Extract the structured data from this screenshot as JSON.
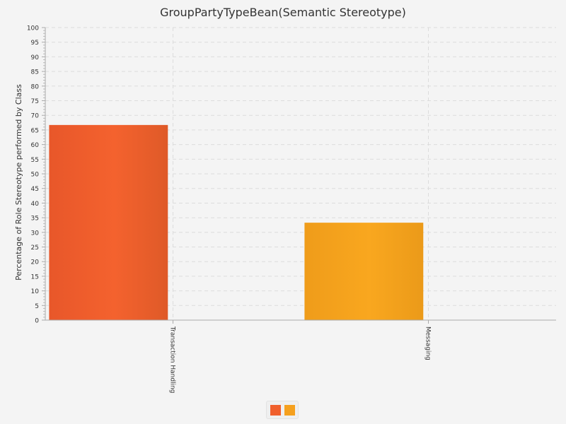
{
  "chart_data": {
    "type": "bar",
    "title": "GroupPartyTypeBean(Semantic Stereotype)",
    "xlabel": "",
    "ylabel": "Percentage of Role Stereotype performed by Class",
    "categories": [
      "Transaction Handling",
      "Messaging"
    ],
    "values": [
      66.7,
      33.3
    ],
    "colors": [
      "#f05f2c",
      "#f5a01e"
    ],
    "ylim": [
      0,
      100
    ],
    "ytick_step": 5,
    "grid": true,
    "legend": {
      "position": "bottom-center",
      "entries": [
        {
          "color": "#f05f2c"
        },
        {
          "color": "#f5a01e"
        }
      ]
    }
  }
}
